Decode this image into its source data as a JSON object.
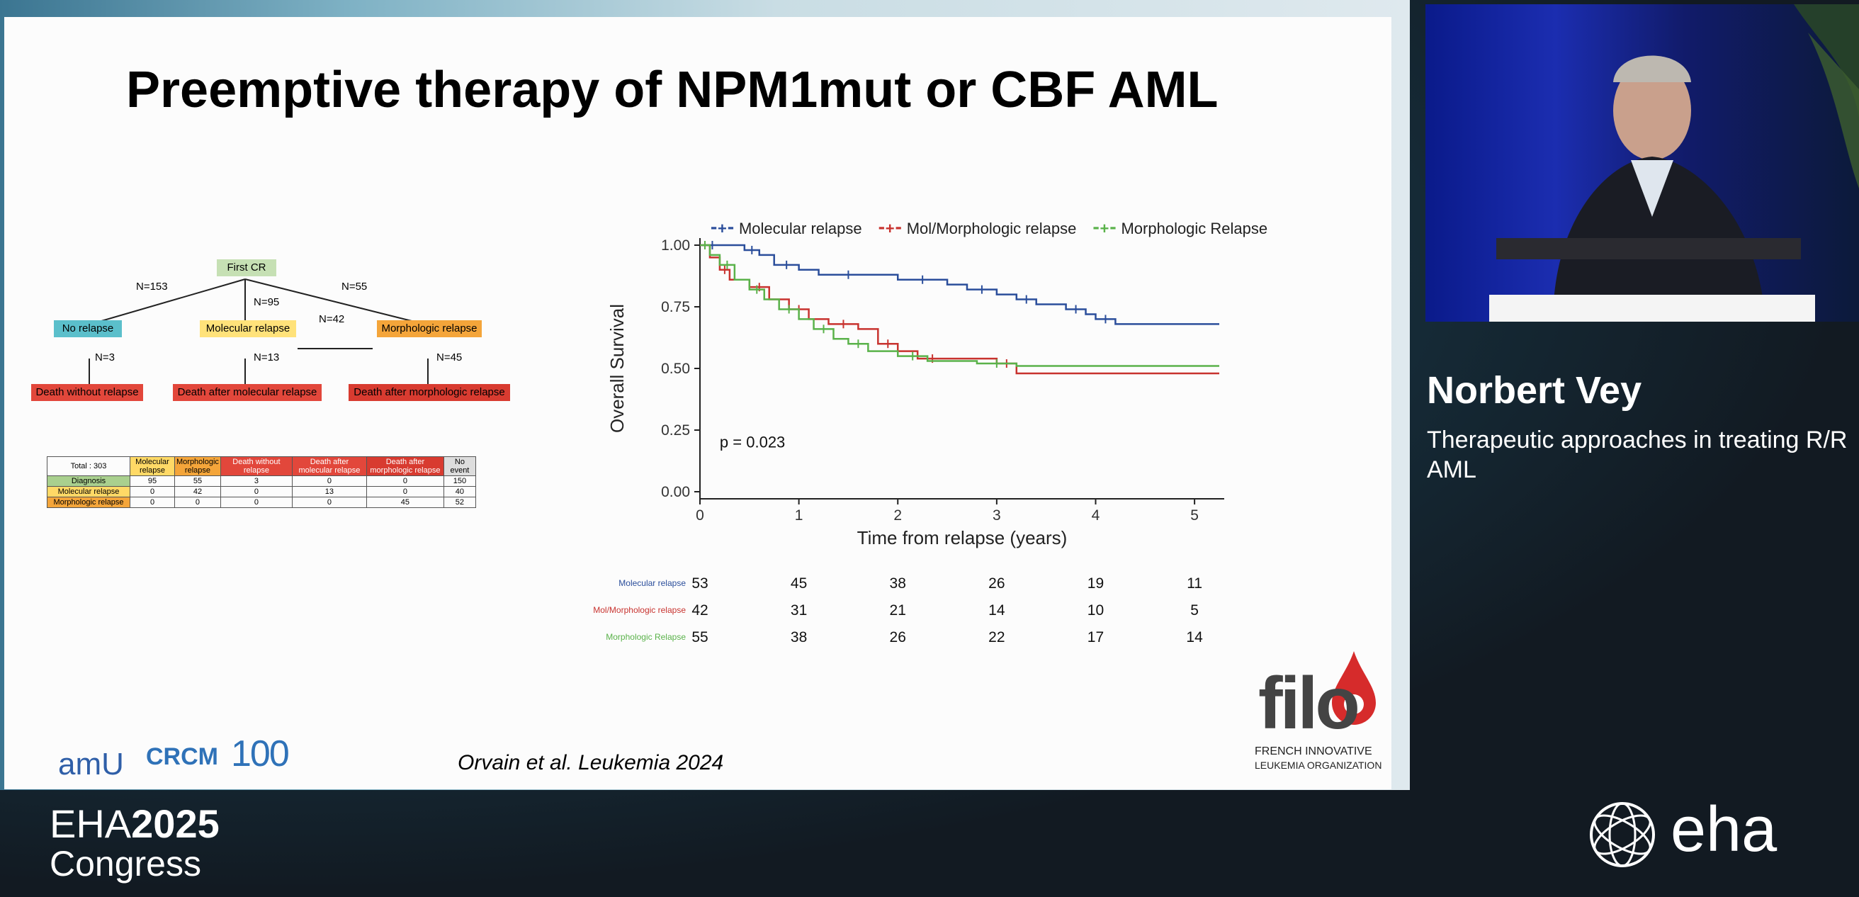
{
  "slide": {
    "title": "Preemptive therapy of NPM1mut or CBF AML",
    "citation": "Orvain et al. Leukemia 2024"
  },
  "flow": {
    "first_cr": "First CR",
    "no_relapse": "No relapse",
    "molecular_relapse": "Molecular relapse",
    "morphologic_relapse": "Morphologic relapse",
    "death_without_relapse": "Death without relapse",
    "death_after_molecular": "Death after molecular relapse",
    "death_after_morphologic": "Death after morphologic relapse",
    "n153": "N=153",
    "n95": "N=95",
    "n55": "N=55",
    "n42": "N=42",
    "n3": "N=3",
    "n13": "N=13",
    "n45": "N=45"
  },
  "table": {
    "total": "Total : 303",
    "headers": [
      "Molecular relapse",
      "Morphologic relapse",
      "Death without relapse",
      "Death after molecular relapse",
      "Death after morphologic relapse",
      "No event"
    ],
    "rows": [
      {
        "label": "Diagnosis",
        "values": [
          "95",
          "55",
          "3",
          "0",
          "0",
          "150"
        ]
      },
      {
        "label": "Molecular relapse",
        "values": [
          "0",
          "42",
          "0",
          "13",
          "0",
          "40"
        ]
      },
      {
        "label": "Morphologic relapse",
        "values": [
          "0",
          "0",
          "0",
          "0",
          "45",
          "52"
        ]
      }
    ]
  },
  "chart_data": {
    "type": "line",
    "title": "",
    "xlabel": "Time from relapse (years)",
    "ylabel": "Overall Survival",
    "xlim": [
      0,
      5.3
    ],
    "ylim": [
      0,
      1.0
    ],
    "x_ticks": [
      "0",
      "1",
      "2",
      "3",
      "4",
      "5"
    ],
    "y_ticks": [
      "0.00",
      "0.25",
      "0.50",
      "0.75",
      "1.00"
    ],
    "annotation": "p = 0.023",
    "legend": [
      "Molecular relapse",
      "Mol/Morphologic relapse",
      "Morphologic Relapse"
    ],
    "series": [
      {
        "name": "Molecular relapse",
        "color": "#2b4e9b",
        "x": [
          0,
          0.25,
          0.45,
          0.6,
          0.75,
          1.0,
          1.2,
          1.8,
          2.0,
          2.5,
          2.7,
          3.0,
          3.2,
          3.4,
          3.7,
          3.9,
          4.0,
          4.2,
          5.25
        ],
        "y": [
          1.0,
          1.0,
          0.98,
          0.96,
          0.92,
          0.9,
          0.88,
          0.88,
          0.86,
          0.84,
          0.82,
          0.8,
          0.78,
          0.76,
          0.74,
          0.72,
          0.7,
          0.68,
          0.68
        ]
      },
      {
        "name": "Mol/Morphologic relapse",
        "color": "#c8332f",
        "x": [
          0,
          0.1,
          0.2,
          0.3,
          0.5,
          0.7,
          0.9,
          1.1,
          1.3,
          1.6,
          1.8,
          2.0,
          2.2,
          2.5,
          3.0,
          3.2,
          5.25
        ],
        "y": [
          1.0,
          0.95,
          0.9,
          0.86,
          0.83,
          0.78,
          0.74,
          0.7,
          0.68,
          0.66,
          0.6,
          0.57,
          0.54,
          0.54,
          0.52,
          0.48,
          0.48
        ]
      },
      {
        "name": "Morphologic Relapse",
        "color": "#5ab24a",
        "x": [
          0,
          0.1,
          0.2,
          0.35,
          0.5,
          0.65,
          0.8,
          1.0,
          1.15,
          1.35,
          1.5,
          1.7,
          2.0,
          2.3,
          2.8,
          3.2,
          5.25
        ],
        "y": [
          1.0,
          0.96,
          0.92,
          0.86,
          0.82,
          0.78,
          0.74,
          0.7,
          0.66,
          0.62,
          0.6,
          0.57,
          0.55,
          0.53,
          0.52,
          0.51,
          0.51
        ]
      }
    ],
    "risk_table": {
      "times": [
        0,
        1,
        2,
        3,
        4,
        5
      ],
      "rows": [
        {
          "label": "Molecular relapse",
          "color": "#2b4e9b",
          "values": [
            "53",
            "45",
            "38",
            "26",
            "19",
            "11"
          ]
        },
        {
          "label": "Mol/Morphologic relapse",
          "color": "#c8332f",
          "values": [
            "42",
            "31",
            "21",
            "14",
            "10",
            "5"
          ]
        },
        {
          "label": "Morphologic Relapse",
          "color": "#5ab24a",
          "values": [
            "55",
            "38",
            "26",
            "22",
            "17",
            "14"
          ]
        }
      ]
    }
  },
  "logos": {
    "amu": "amU",
    "crcm": "CRCM",
    "ipc": "100",
    "filo": "filo",
    "filo_line1": "FRENCH INNOVATIVE",
    "filo_line2": "LEUKEMIA ORGANIZATION"
  },
  "speaker": {
    "name": "Norbert Vey",
    "topic": "Therapeutic approaches in treating R/R AML"
  },
  "congress": {
    "eha": "EHA",
    "year": "2025",
    "word": "Congress",
    "brand": "eha"
  },
  "colors": {
    "slide_bg": "#fcfcfc",
    "panel_bg": "#1d2128",
    "green_node": "#c6e0b4",
    "teal_node": "#5bbfcb",
    "yellow_node": "#ffe27a",
    "orange_node": "#f4a53a",
    "red_node": "#e2473b"
  }
}
